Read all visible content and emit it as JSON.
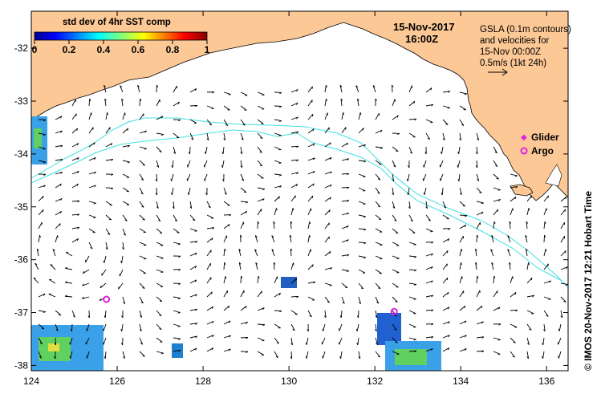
{
  "map": {
    "date_label": "15-Nov-2017",
    "time_label": "16:00Z",
    "info_lines": [
      "GSLA (0.1m contours)",
      "and velocities for",
      "15-Nov 00:00Z",
      "0.5m/s (1kt 24h)"
    ],
    "side_text": "© IMOS 20-Nov-2017 12:21 Hobart Time",
    "colorbar": {
      "title": "std dev of 4hr SST comp",
      "ticks": [
        "0",
        "0.2",
        "0.4",
        "0.6",
        "0.8",
        "1"
      ]
    },
    "legend": [
      {
        "label": "Glider",
        "color": "#e020e0"
      },
      {
        "label": "Argo",
        "color": "#e020e0"
      }
    ],
    "x_axis": {
      "ticks": [
        "124",
        "126",
        "128",
        "130",
        "132",
        "134",
        "136"
      ],
      "values": [
        124,
        126,
        128,
        130,
        132,
        134,
        136
      ],
      "range": [
        124,
        136.5
      ]
    },
    "y_axis": {
      "ticks": [
        "-32",
        "-33",
        "-34",
        "-35",
        "-36",
        "-37",
        "-38"
      ],
      "values": [
        -32,
        -33,
        -34,
        -35,
        -36,
        -37,
        -38
      ],
      "range": [
        -31.3,
        -38.1
      ]
    },
    "argo_floats": [
      {
        "lon": 125.75,
        "lat": -36.75
      },
      {
        "lon": 132.45,
        "lat": -36.98
      }
    ],
    "colors": {
      "land": "#fcc896",
      "contour": "#40e0e0",
      "arrow": "#000000",
      "marker": "#e020e0"
    }
  }
}
